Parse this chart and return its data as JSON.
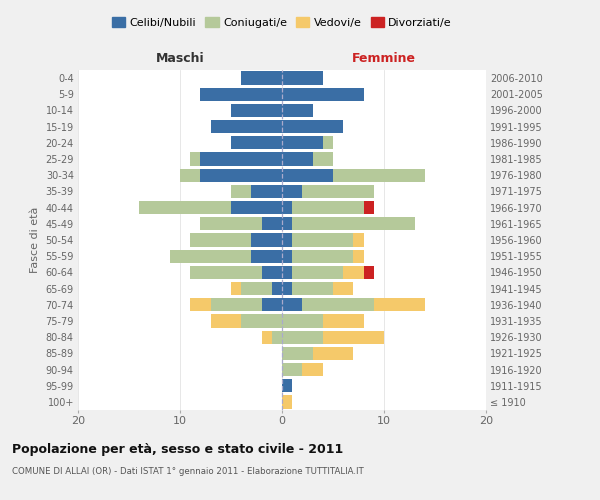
{
  "age_groups": [
    "100+",
    "95-99",
    "90-94",
    "85-89",
    "80-84",
    "75-79",
    "70-74",
    "65-69",
    "60-64",
    "55-59",
    "50-54",
    "45-49",
    "40-44",
    "35-39",
    "30-34",
    "25-29",
    "20-24",
    "15-19",
    "10-14",
    "5-9",
    "0-4"
  ],
  "birth_years": [
    "≤ 1910",
    "1911-1915",
    "1916-1920",
    "1921-1925",
    "1926-1930",
    "1931-1935",
    "1936-1940",
    "1941-1945",
    "1946-1950",
    "1951-1955",
    "1956-1960",
    "1961-1965",
    "1966-1970",
    "1971-1975",
    "1976-1980",
    "1981-1985",
    "1986-1990",
    "1991-1995",
    "1996-2000",
    "2001-2005",
    "2006-2010"
  ],
  "male": {
    "celibi": [
      0,
      0,
      0,
      0,
      0,
      0,
      2,
      1,
      2,
      3,
      3,
      2,
      5,
      3,
      8,
      8,
      5,
      7,
      5,
      8,
      4
    ],
    "coniugati": [
      0,
      0,
      0,
      0,
      1,
      4,
      5,
      3,
      7,
      8,
      6,
      6,
      9,
      2,
      2,
      1,
      0,
      0,
      0,
      0,
      0
    ],
    "vedovi": [
      0,
      0,
      0,
      0,
      1,
      3,
      2,
      1,
      0,
      0,
      0,
      0,
      0,
      0,
      0,
      0,
      0,
      0,
      0,
      0,
      0
    ],
    "divorziati": [
      0,
      0,
      0,
      0,
      0,
      0,
      0,
      0,
      0,
      0,
      0,
      0,
      0,
      0,
      0,
      0,
      0,
      0,
      0,
      0,
      0
    ]
  },
  "female": {
    "nubili": [
      0,
      1,
      0,
      0,
      0,
      0,
      2,
      1,
      1,
      1,
      1,
      1,
      1,
      2,
      5,
      3,
      4,
      6,
      3,
      8,
      4
    ],
    "coniugate": [
      0,
      0,
      2,
      3,
      4,
      4,
      7,
      4,
      5,
      6,
      6,
      12,
      7,
      7,
      9,
      2,
      1,
      0,
      0,
      0,
      0
    ],
    "vedove": [
      1,
      0,
      2,
      4,
      6,
      4,
      5,
      2,
      2,
      1,
      1,
      0,
      0,
      0,
      0,
      0,
      0,
      0,
      0,
      0,
      0
    ],
    "divorziate": [
      0,
      0,
      0,
      0,
      0,
      0,
      0,
      0,
      1,
      0,
      0,
      0,
      1,
      0,
      0,
      0,
      0,
      0,
      0,
      0,
      0
    ]
  },
  "colors": {
    "celibi": "#3a6ea5",
    "coniugati": "#b5c99a",
    "vedovi": "#f5c96a",
    "divorziati": "#cc2222"
  },
  "xlim": [
    -20,
    20
  ],
  "title": "Popolazione per età, sesso e stato civile - 2011",
  "subtitle": "COMUNE DI ALLAI (OR) - Dati ISTAT 1° gennaio 2011 - Elaborazione TUTTITALIA.IT",
  "ylabel_left": "Fasce di età",
  "xlabel_left": "Maschi",
  "xlabel_right": "Femmine",
  "background_color": "#f0f0f0",
  "plot_background": "#ffffff"
}
